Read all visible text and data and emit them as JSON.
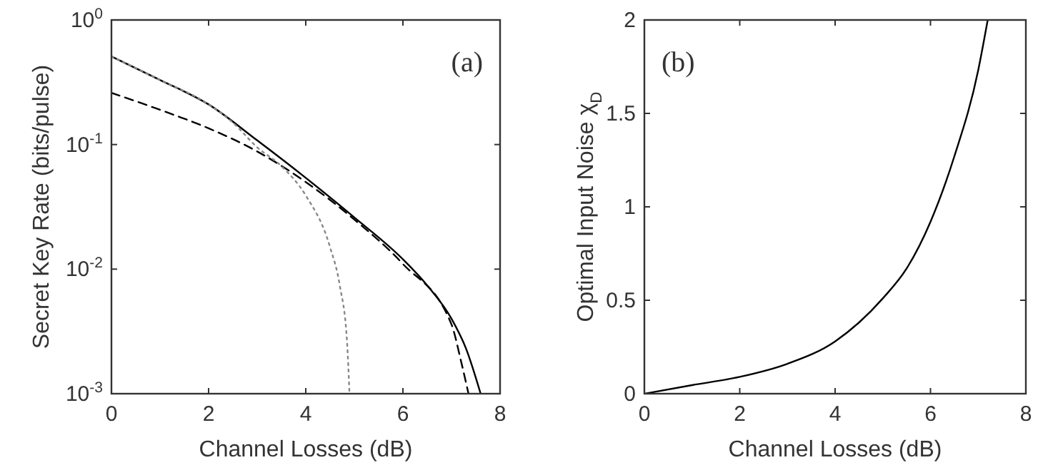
{
  "chart_data": [
    {
      "type": "line",
      "xlabel": "Channel Losses (dB)",
      "ylabel": "Secret Key Rate (bits/pulse)",
      "annotations": [
        "(a)"
      ],
      "log": "y",
      "xlim": [
        0,
        8
      ],
      "xticks": [
        0,
        2,
        4,
        6,
        8
      ],
      "ylim": [
        0.001,
        1
      ],
      "yticks": [
        {
          "value": 0.001,
          "label": "10$^{-3}$"
        },
        {
          "value": 0.01,
          "label": "10$^{-2}$"
        },
        {
          "value": 0.1,
          "label": "10$^{-1}$"
        },
        {
          "value": 1,
          "label": "10$^{0}$"
        }
      ],
      "series": [
        {
          "color": "#000000",
          "line_style": "solid",
          "x": [
            0,
            1,
            2,
            3,
            4,
            5,
            6,
            6.5,
            7,
            7.3,
            7.6
          ],
          "values": [
            0.51,
            0.33,
            0.21,
            0.108,
            0.054,
            0.026,
            0.012,
            0.0074,
            0.004,
            0.0023,
            0.001
          ]
        },
        {
          "color": "#000000",
          "line_style": "dashed",
          "x": [
            0,
            1,
            2,
            3,
            4,
            5,
            6,
            7,
            7.2,
            7.35
          ],
          "values": [
            0.26,
            0.19,
            0.135,
            0.088,
            0.05,
            0.025,
            0.011,
            0.0036,
            0.0018,
            0.001
          ]
        },
        {
          "color": "#888888",
          "line_style": "dotted",
          "x": [
            0,
            1,
            2,
            2.5,
            3,
            3.5,
            4,
            4.5,
            4.7,
            4.85,
            4.9
          ],
          "values": [
            0.51,
            0.33,
            0.21,
            0.15,
            0.095,
            0.067,
            0.039,
            0.015,
            0.0074,
            0.0026,
            0.001
          ]
        }
      ]
    },
    {
      "type": "line",
      "xlabel": "Channel Losses (dB)",
      "ylabel": "Optimal Input Noise χ$_{D}$",
      "annotations": [
        "(b)"
      ],
      "xlim": [
        0,
        8
      ],
      "xticks": [
        0,
        2,
        4,
        6,
        8
      ],
      "ylim": [
        0,
        2
      ],
      "yticks": [
        0,
        0.5,
        1,
        1.5,
        2
      ],
      "series": [
        {
          "color": "#000000",
          "line_style": "solid",
          "x": [
            0,
            1,
            2,
            3,
            4,
            5,
            5.5,
            6,
            6.5,
            7,
            7.2
          ],
          "values": [
            0,
            0.046,
            0.09,
            0.16,
            0.28,
            0.51,
            0.67,
            0.92,
            1.27,
            1.73,
            2.0
          ]
        }
      ]
    }
  ]
}
